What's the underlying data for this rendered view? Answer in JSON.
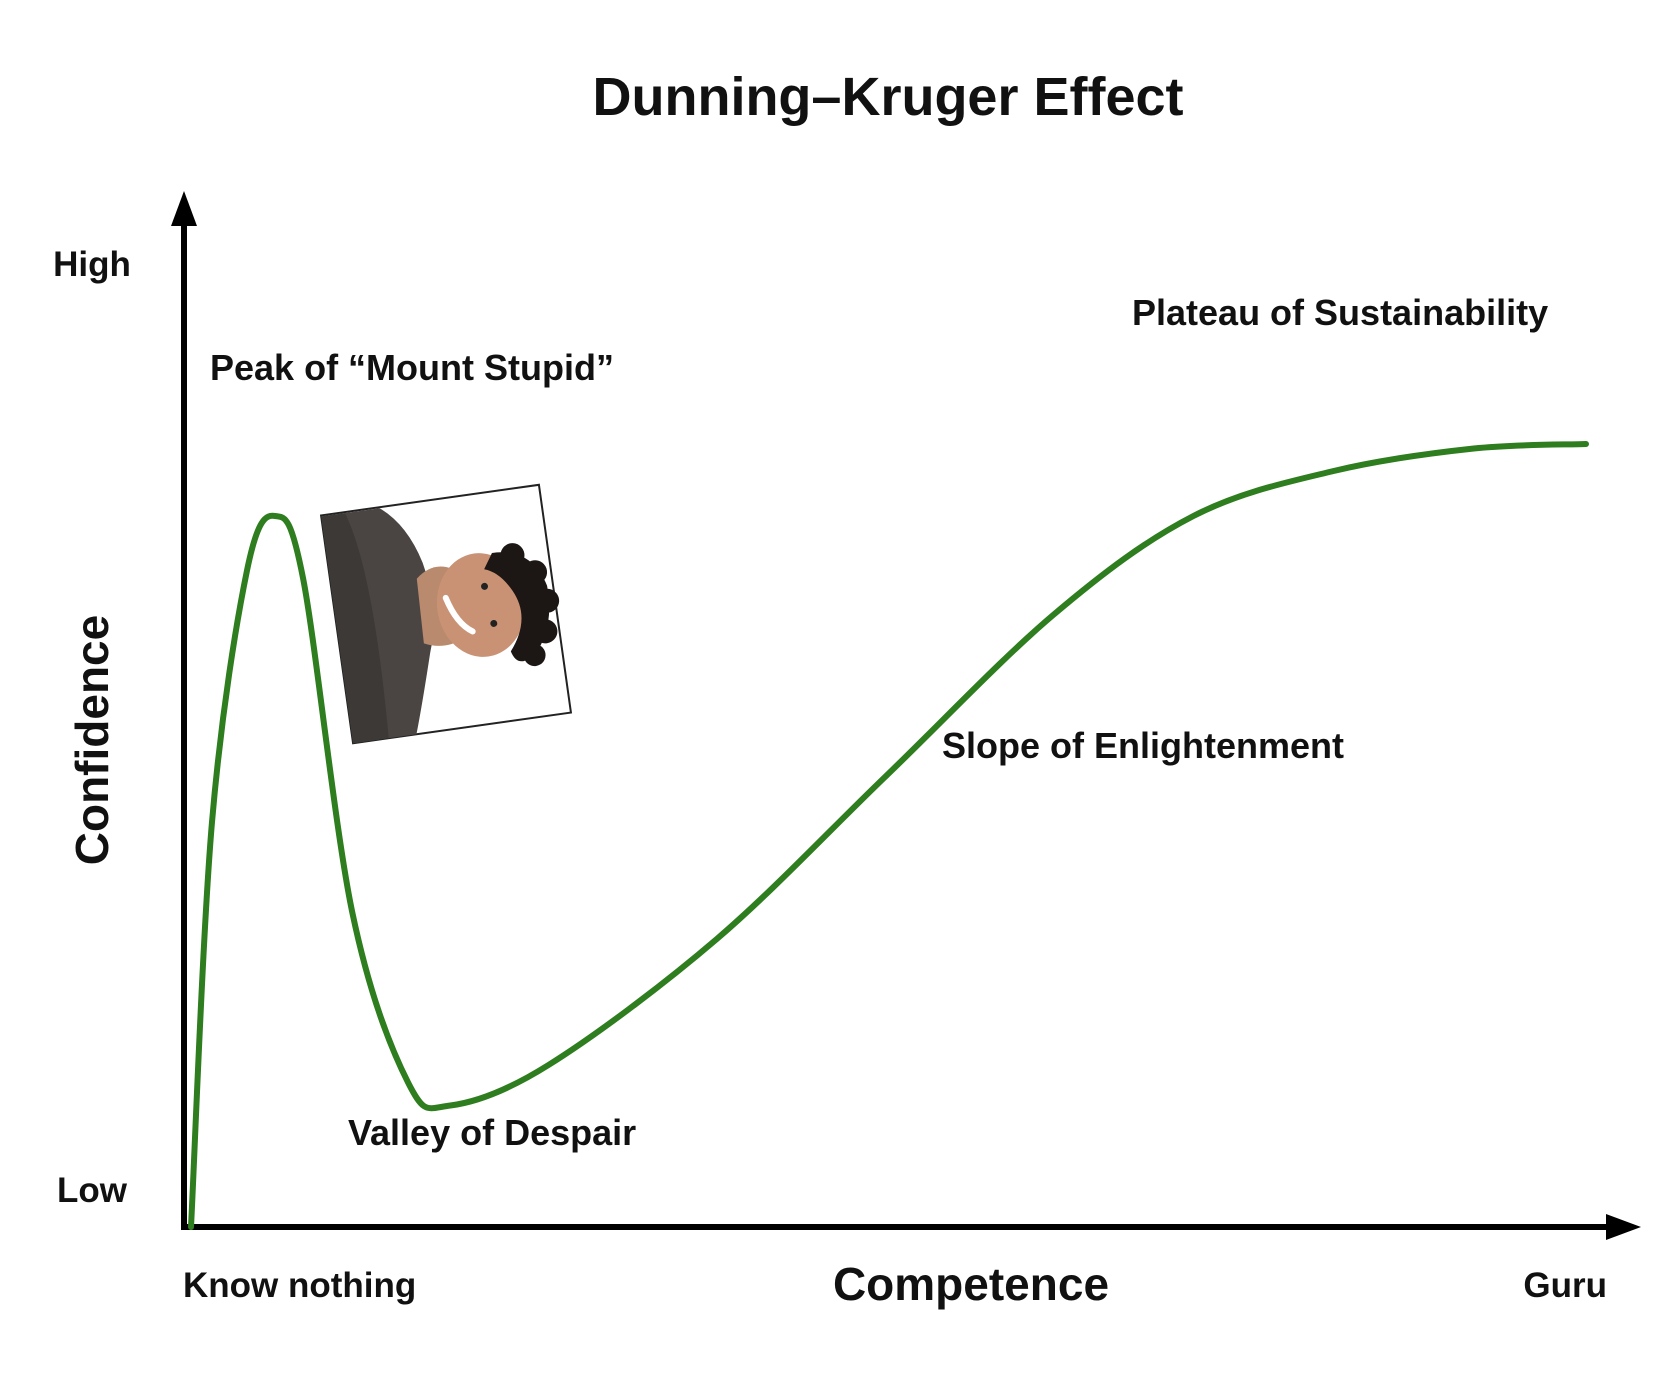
{
  "chart_data": {
    "type": "line",
    "title": "Dunning–Kruger Effect",
    "xlabel": "Competence",
    "ylabel": "Confidence",
    "x_tick_labels": [
      "Know nothing",
      "Guru"
    ],
    "y_tick_labels": [
      "Low",
      "High"
    ],
    "annotations": [
      "Peak of “Mount Stupid”",
      "Valley of Despair",
      "Slope of Enlightenment",
      "Plateau of Sustainability"
    ],
    "grid": false,
    "legend": "none",
    "series": [
      {
        "color": "#2e7d1e",
        "points": [
          [
            0.005,
            0.0
          ],
          [
            0.02,
            0.45
          ],
          [
            0.045,
            0.73
          ],
          [
            0.065,
            0.79
          ],
          [
            0.085,
            0.72
          ],
          [
            0.12,
            0.35
          ],
          [
            0.16,
            0.16
          ],
          [
            0.19,
            0.135
          ],
          [
            0.26,
            0.18
          ],
          [
            0.38,
            0.32
          ],
          [
            0.5,
            0.5
          ],
          [
            0.62,
            0.68
          ],
          [
            0.72,
            0.79
          ],
          [
            0.82,
            0.84
          ],
          [
            0.92,
            0.865
          ],
          [
            1.0,
            0.87
          ]
        ]
      }
    ]
  },
  "colors": {
    "curve": "#2e7d1e",
    "axis": "#000000",
    "text": "#111111"
  },
  "image": {
    "description_icon": "smiling-man-photo-icon"
  }
}
